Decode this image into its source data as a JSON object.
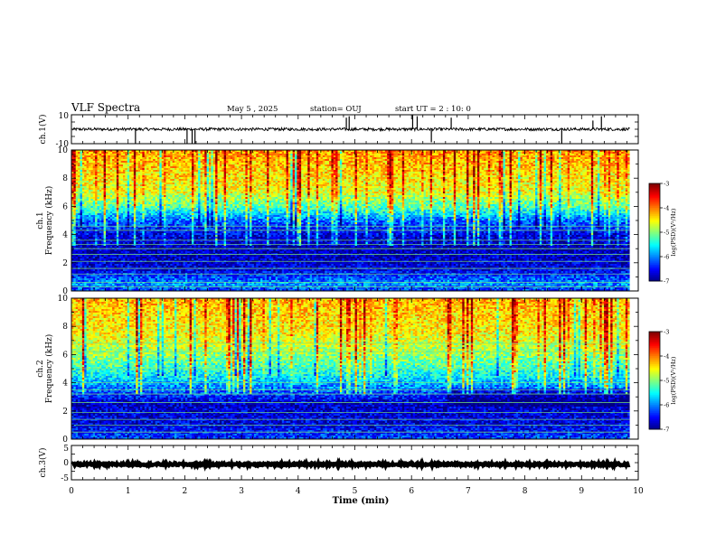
{
  "header": {
    "title": "VLF Spectra",
    "date": "May 5 , 2025",
    "station": "station= OUJ",
    "start": "start UT = 2 : 10: 0"
  },
  "chart_data": {
    "type": "heatmap",
    "x": {
      "label": "Time (min)",
      "range": [
        0,
        10
      ],
      "ticks": [
        "0",
        "1",
        "2",
        "3",
        "4",
        "5",
        "6",
        "7",
        "8",
        "9",
        "10"
      ],
      "data_end": 9.85
    },
    "panels": [
      {
        "id": "ch1-waveform",
        "type": "line",
        "ylabel": "ch.1(V)",
        "ylim": [
          -10,
          10
        ],
        "ytick_labels": [
          "10",
          "-10"
        ],
        "baseline": 0,
        "noise_amplitude": 1.0,
        "spikes": [
          {
            "t": 1.13,
            "v": -10
          },
          {
            "t": 2.04,
            "v": -10
          },
          {
            "t": 2.13,
            "v": -10
          },
          {
            "t": 2.18,
            "v": -10
          },
          {
            "t": 4.85,
            "v": 8
          },
          {
            "t": 4.9,
            "v": 9
          },
          {
            "t": 6.02,
            "v": 10
          },
          {
            "t": 6.1,
            "v": 9
          },
          {
            "t": 6.35,
            "v": -9
          },
          {
            "t": 6.7,
            "v": 8
          },
          {
            "t": 8.65,
            "v": -10
          },
          {
            "t": 9.2,
            "v": 6
          },
          {
            "t": 9.35,
            "v": 9
          }
        ]
      },
      {
        "id": "ch1-spectrogram",
        "type": "heatmap",
        "ylabel": "ch.1",
        "ylabel2": "Frequency (kHz)",
        "ylim": [
          0,
          10
        ],
        "ytick_labels": [
          "0",
          "2",
          "4",
          "6",
          "8",
          "10"
        ],
        "colorbar": {
          "label": "log(PSD)(V²/Hz)",
          "range": [
            -7,
            -3
          ],
          "tick_labels": [
            "-3",
            "-4",
            "-5",
            "-6",
            "-7"
          ]
        },
        "level_profile": [
          {
            "f": 0.0,
            "v": -6.3
          },
          {
            "f": 0.5,
            "v": -5.9
          },
          {
            "f": 1.5,
            "v": -6.6
          },
          {
            "f": 3.0,
            "v": -6.8
          },
          {
            "f": 4.0,
            "v": -6.6
          },
          {
            "f": 5.0,
            "v": -6.1
          },
          {
            "f": 5.8,
            "v": -5.3
          },
          {
            "f": 7.0,
            "v": -4.6
          },
          {
            "f": 10.0,
            "v": -4.1
          }
        ],
        "line_frequencies_khz": [
          0.3,
          0.6,
          1.2,
          1.6,
          2.1,
          2.6,
          3.0,
          3.3,
          3.6,
          4.3,
          4.6
        ]
      },
      {
        "id": "ch2-spectrogram",
        "type": "heatmap",
        "ylabel": "ch.2",
        "ylabel2": "Frequency (kHz)",
        "ylim": [
          0,
          10
        ],
        "ytick_labels": [
          "0",
          "2",
          "4",
          "6",
          "8",
          "10"
        ],
        "colorbar": {
          "label": "log(PSD)(V²/Hz)",
          "range": [
            -7,
            -3
          ],
          "tick_labels": [
            "-3",
            "-4",
            "-5",
            "-6",
            "-7"
          ]
        },
        "level_profile": [
          {
            "f": 0.0,
            "v": -6.2
          },
          {
            "f": 1.0,
            "v": -6.6
          },
          {
            "f": 2.5,
            "v": -6.7
          },
          {
            "f": 3.5,
            "v": -6.1
          },
          {
            "f": 4.5,
            "v": -5.5
          },
          {
            "f": 6.0,
            "v": -4.9
          },
          {
            "f": 7.5,
            "v": -4.5
          },
          {
            "f": 10.0,
            "v": -4.2
          }
        ],
        "line_frequencies_khz": [
          0.5,
          1.0,
          1.4,
          1.9,
          2.6,
          3.2,
          3.5,
          4.0,
          5.0,
          6.2,
          6.8
        ]
      },
      {
        "id": "ch3-waveform",
        "type": "line",
        "ylabel": "ch.3(V)",
        "ylim": [
          -5,
          5
        ],
        "ytick_labels": [
          "5",
          "0",
          "-5"
        ],
        "baseline": -0.5,
        "noise_amplitude": 0.3
      }
    ]
  }
}
